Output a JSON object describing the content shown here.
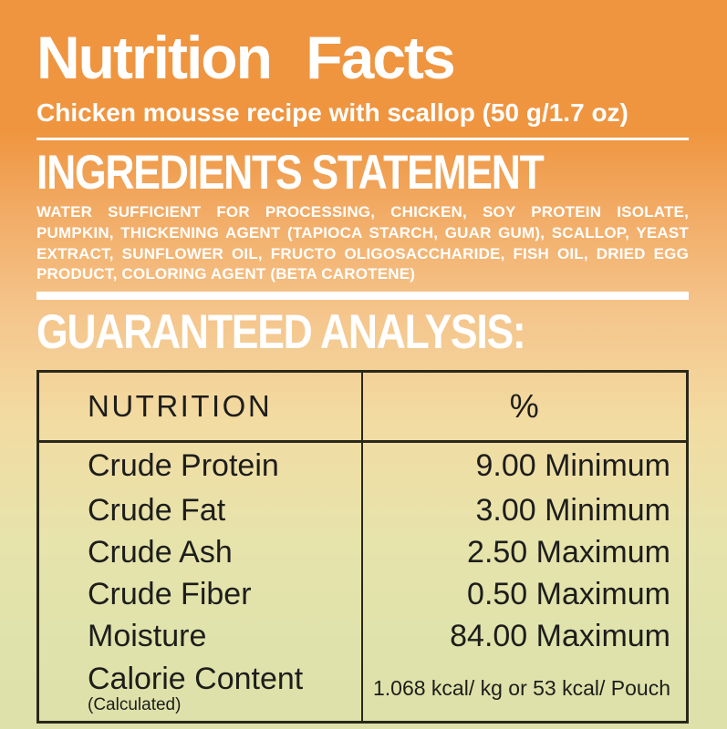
{
  "header": {
    "title": "Nutrition Facts",
    "subtitle": "Chicken mousse recipe with scallop (50 g/1.7 oz)"
  },
  "ingredients": {
    "heading": "INGREDIENTS STATEMENT",
    "text": "WATER SUFFICIENT FOR PROCESSING, CHICKEN, SOY PROTEIN ISOLATE, PUMPKIN, THICKENING AGENT (TAPIOCA STARCH, GUAR GUM), SCALLOP, YEAST EXTRACT, SUNFLOWER OIL, FRUCTO OLIGOSACCHARIDE, FISH OIL, DRIED EGG PRODUCT, COLORING AGENT (BETA CAROTENE)"
  },
  "analysis": {
    "heading": "GUARANTEED ANALYSIS:",
    "table": {
      "columns": {
        "nutrient": "NUTRITION",
        "percent": "%"
      },
      "rows": [
        {
          "nutrient": "Crude Protein",
          "value": "9.00 Minimum"
        },
        {
          "nutrient": "Crude Fat",
          "value": "3.00 Minimum"
        },
        {
          "nutrient": "Crude Ash",
          "value": "2.50 Maximum"
        },
        {
          "nutrient": "Crude Fiber",
          "value": "0.50 Maximum"
        },
        {
          "nutrient": "Moisture",
          "value": "84.00 Maximum"
        },
        {
          "nutrient": "Calorie Content",
          "note": "(Calculated)",
          "value": "1.068 kcal/ kg or 53 kcal/ Pouch"
        }
      ]
    }
  },
  "colors": {
    "top_orange": "#EF9540",
    "bottom_green": "#DFE3AB",
    "text_white": "#FFFFFF",
    "table_border": "#2A281B",
    "table_text": "#1D1D1B"
  }
}
